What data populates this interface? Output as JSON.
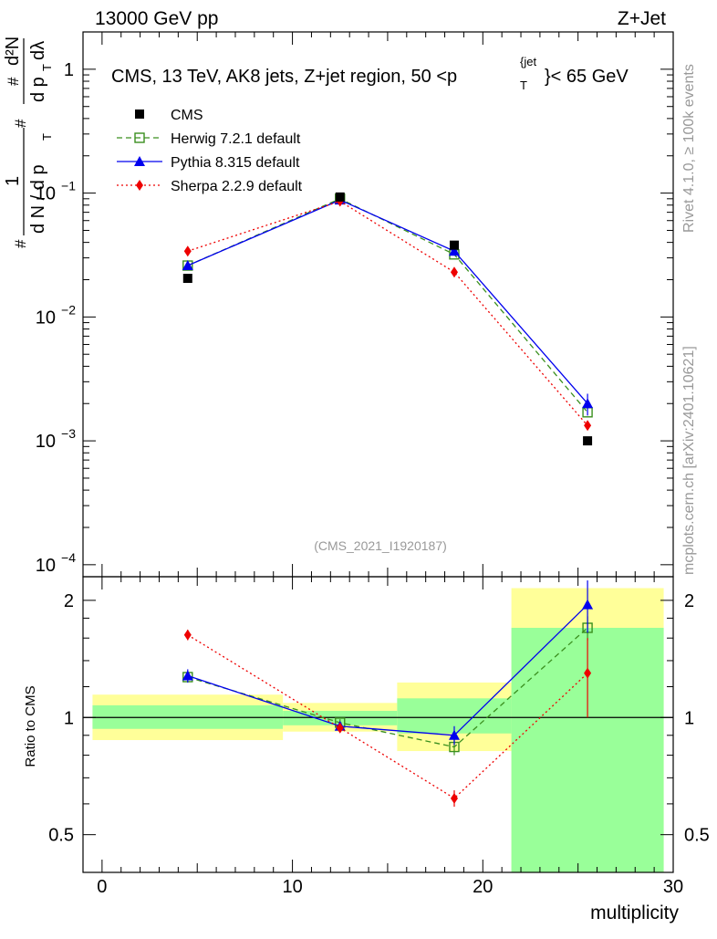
{
  "header": {
    "left": "13000 GeV pp",
    "right": "Z+Jet"
  },
  "side": {
    "rivet": "Rivet 4.1.0, ≥ 100k events",
    "mcplots": "mcplots.cern.ch [arXiv:2401.10621]"
  },
  "chart_data": [
    {
      "type": "scatter",
      "title": "CMS, 13 TeV, AK8 jets, Z+jet region, 50 <p_T^{jet}< 65 GeV",
      "title_parts": {
        "main": "CMS, 13 TeV, AK8 jets, Z+jet region, 50 <p",
        "sub": "T",
        "sup": "{jet",
        "tail": "}< 65 GeV"
      },
      "analysis_id": "(CMS_2021_I1920187)",
      "ylabel": "1/dN/dp_T d^2N/dp_T dλ",
      "ylabel_parts": {
        "hash": "#",
        "one": "1",
        "dndpt": "d N / d p",
        "d2n": "d²N",
        "dpt": "d p",
        "dl": "dλ",
        "t": "T"
      },
      "yscale": "log",
      "ylim": [
        8e-05,
        2
      ],
      "yticks": [
        "1",
        "10",
        "10",
        "10",
        "10"
      ],
      "yticks_exp": [
        "",
        "−1",
        "−2",
        "−3",
        "−4"
      ],
      "xlim": [
        -1,
        30
      ],
      "legend_position": "top-left",
      "series": [
        {
          "name": "CMS",
          "marker": "square-filled",
          "color": "#000000",
          "line": "none",
          "x": [
            4.5,
            12.5,
            18.5,
            25.5
          ],
          "y": [
            0.0205,
            0.093,
            0.038,
            0.001
          ]
        },
        {
          "name": "Herwig 7.2.1 default",
          "marker": "square-open",
          "color": "#3a8f1e",
          "line": "dashed",
          "x": [
            4.5,
            12.5,
            18.5,
            25.5
          ],
          "y": [
            0.026,
            0.09,
            0.032,
            0.0017
          ]
        },
        {
          "name": "Pythia 8.315 default",
          "marker": "triangle",
          "color": "#0000ee",
          "line": "solid",
          "x": [
            4.5,
            12.5,
            18.5,
            25.5
          ],
          "y": [
            0.026,
            0.088,
            0.034,
            0.002
          ]
        },
        {
          "name": "Sherpa 2.2.9 default",
          "marker": "diamond",
          "color": "#ee0000",
          "line": "dotted",
          "x": [
            4.5,
            12.5,
            18.5,
            25.5
          ],
          "y": [
            0.034,
            0.086,
            0.023,
            0.00133
          ]
        }
      ]
    },
    {
      "type": "scatter",
      "title": "Ratio to CMS",
      "xlabel": "multiplicity",
      "ylabel": "Ratio to CMS",
      "yscale": "log",
      "ylim": [
        0.4,
        2.3
      ],
      "yticks": [
        "0.5",
        "1",
        "2"
      ],
      "xlim": [
        -1,
        30
      ],
      "xticks": [
        "0",
        "10",
        "20",
        "30"
      ],
      "reference": 1,
      "bins": [
        {
          "x_low": -0.5,
          "x_high": 9.5,
          "band_inner": [
            0.935,
            1.075
          ],
          "band_outer": [
            0.875,
            1.145
          ]
        },
        {
          "x_low": 9.5,
          "x_high": 15.5,
          "band_inner": [
            0.955,
            1.04
          ],
          "band_outer": [
            0.92,
            1.09
          ]
        },
        {
          "x_low": 15.5,
          "x_high": 21.5,
          "band_inner": [
            0.91,
            1.12
          ],
          "band_outer": [
            0.82,
            1.23
          ]
        },
        {
          "x_low": 21.5,
          "x_high": 29.5,
          "band_inner": [
            0.3,
            1.7
          ],
          "band_outer": [
            0.3,
            2.15
          ]
        }
      ],
      "series": [
        {
          "name": "Herwig 7.2.1 default",
          "color": "#3a8f1e",
          "line": "dashed",
          "x": [
            4.5,
            12.5,
            18.5,
            25.5
          ],
          "y": [
            1.27,
            0.97,
            0.84,
            1.7
          ],
          "err": [
            0.04,
            0.02,
            0.04,
            0.12
          ]
        },
        {
          "name": "Pythia 8.315 default",
          "color": "#0000ee",
          "line": "solid",
          "x": [
            4.5,
            12.5,
            18.5,
            25.5
          ],
          "y": [
            1.28,
            0.95,
            0.9,
            1.95
          ],
          "err": [
            0.05,
            0.02,
            0.05,
            0.3
          ]
        },
        {
          "name": "Sherpa 2.2.9 default",
          "color": "#ee0000",
          "line": "dotted",
          "x": [
            4.5,
            12.5,
            18.5,
            25.5
          ],
          "y": [
            1.63,
            0.94,
            0.62,
            1.3
          ],
          "err": [
            0.05,
            0.02,
            0.03,
            0.3
          ]
        }
      ]
    }
  ]
}
